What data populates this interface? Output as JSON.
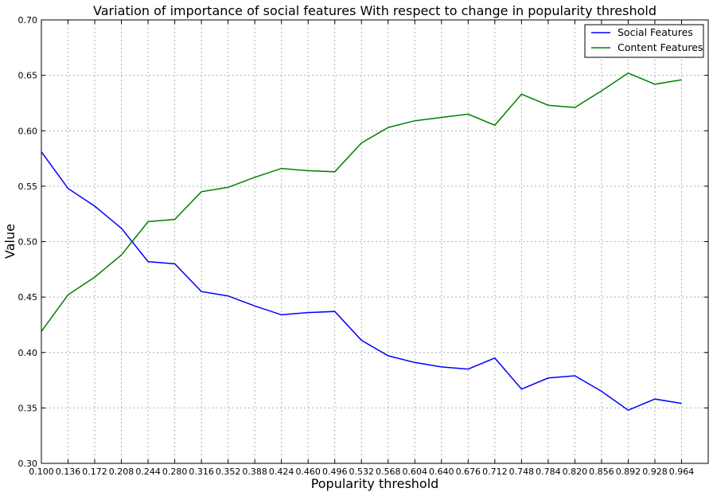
{
  "chart_data": {
    "type": "line",
    "title": "Variation of importance of social features With respect to change in popularity threshold",
    "xlabel": "Popularity threshold",
    "ylabel": "Value",
    "x": [
      0.1,
      0.136,
      0.172,
      0.208,
      0.244,
      0.28,
      0.316,
      0.352,
      0.388,
      0.424,
      0.46,
      0.496,
      0.532,
      0.568,
      0.604,
      0.64,
      0.676,
      0.712,
      0.748,
      0.784,
      0.82,
      0.856,
      0.892,
      0.928,
      0.964
    ],
    "x_tick_labels": [
      "0.100",
      "0.136",
      "0.172",
      "0.208",
      "0.244",
      "0.280",
      "0.316",
      "0.352",
      "0.388",
      "0.424",
      "0.460",
      "0.496",
      "0.532",
      "0.568",
      "0.604",
      "0.640",
      "0.676",
      "0.712",
      "0.748",
      "0.784",
      "0.820",
      "0.856",
      "0.892",
      "0.928",
      "0.964"
    ],
    "xlim": [
      0.1,
      1.0
    ],
    "ylim": [
      0.3,
      0.7
    ],
    "y_ticks": [
      0.3,
      0.35,
      0.4,
      0.45,
      0.5,
      0.55,
      0.6,
      0.65,
      0.7
    ],
    "y_tick_labels": [
      "0.30",
      "0.35",
      "0.40",
      "0.45",
      "0.50",
      "0.55",
      "0.60",
      "0.65",
      "0.70"
    ],
    "grid": true,
    "legend_position": "top-right",
    "series": [
      {
        "name": "Social Features",
        "color": "#0000ff",
        "values": [
          0.581,
          0.548,
          0.532,
          0.512,
          0.482,
          0.48,
          0.455,
          0.451,
          0.442,
          0.434,
          0.436,
          0.437,
          0.411,
          0.397,
          0.391,
          0.387,
          0.385,
          0.395,
          0.367,
          0.377,
          0.379,
          0.365,
          0.348,
          0.358,
          0.354
        ]
      },
      {
        "name": "Content Features",
        "color": "#008000",
        "values": [
          0.419,
          0.452,
          0.468,
          0.488,
          0.518,
          0.52,
          0.545,
          0.549,
          0.558,
          0.566,
          0.564,
          0.563,
          0.589,
          0.603,
          0.609,
          0.612,
          0.615,
          0.605,
          0.633,
          0.623,
          0.621,
          0.636,
          0.652,
          0.642,
          0.646
        ]
      }
    ]
  }
}
